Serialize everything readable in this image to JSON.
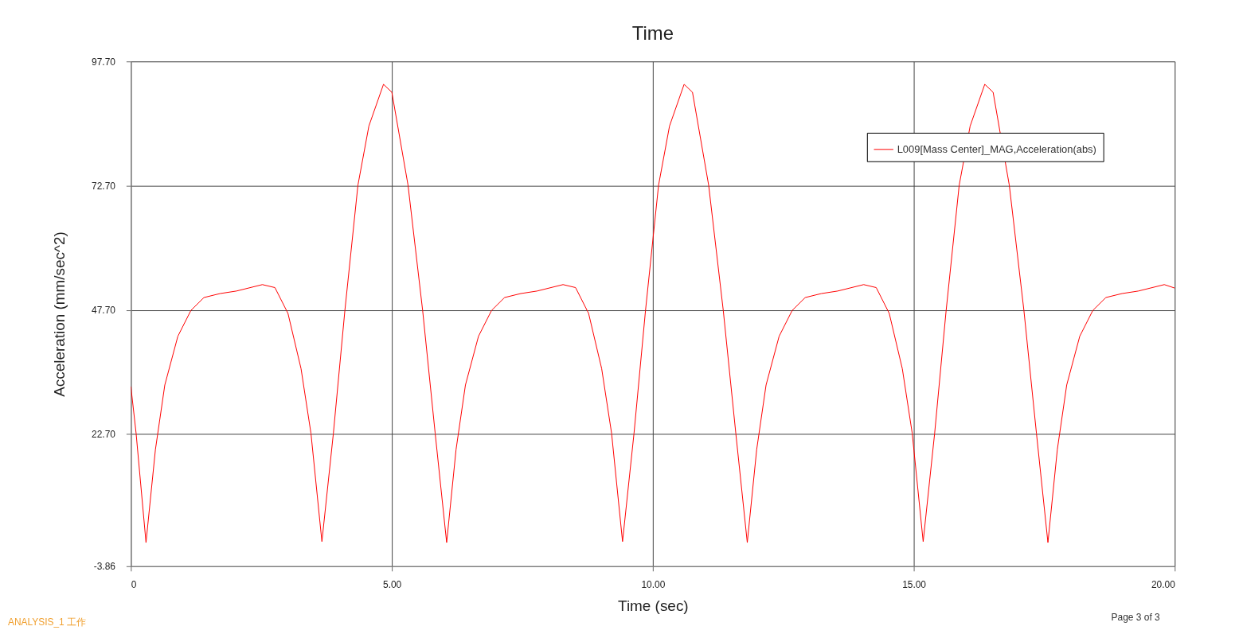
{
  "chart_data": {
    "type": "line",
    "title": "Time",
    "xlabel": "Time (sec)",
    "ylabel": "Acceleration (mm/sec^2)",
    "annotations": [
      "ANALYSIS_1 工作",
      "Page 3 of 3"
    ],
    "xlim": [
      0,
      20
    ],
    "ylim": [
      -3.86,
      97.7
    ],
    "xticks": [
      0,
      {
        "value": 5,
        "label": "5.00"
      },
      {
        "value": 10,
        "label": "10.00"
      },
      {
        "value": 15,
        "label": "15.00"
      },
      {
        "value": 20,
        "label": "20.00"
      }
    ],
    "yticks": [
      {
        "value": -3.86,
        "label": "-3.86"
      },
      {
        "value": 22.7,
        "label": "22.70"
      },
      {
        "value": 47.7,
        "label": "47.70"
      },
      {
        "value": 72.7,
        "label": "72.70"
      },
      {
        "value": 97.7,
        "label": "97.70"
      }
    ],
    "grid": true,
    "legend": "top right",
    "line_style": "solid",
    "marker": "none",
    "series": [
      {
        "name": "L009[Mass Center]_MAG,Acceleration(abs)",
        "color": "#ff0000",
        "x": [
          0,
          0.1,
          0.29,
          0.47,
          0.65,
          0.9,
          1.15,
          1.4,
          1.71,
          2.02,
          2.52,
          2.76,
          3.01,
          3.26,
          3.45,
          3.66,
          3.88,
          4.1,
          4.35,
          4.56,
          4.84,
          5.0,
          5.31,
          5.59,
          5.83,
          6.05,
          6.23,
          6.41,
          6.66,
          6.91,
          7.16,
          7.47,
          7.78,
          8.28,
          8.52,
          8.77,
          9.02,
          9.21,
          9.42,
          9.64,
          9.86,
          10.11,
          10.32,
          10.6,
          10.76,
          11.07,
          11.35,
          11.59,
          11.81,
          11.99,
          12.17,
          12.42,
          12.67,
          12.92,
          13.23,
          13.54,
          14.04,
          14.28,
          14.53,
          14.78,
          14.97,
          15.18,
          15.4,
          15.62,
          15.87,
          16.08,
          16.36,
          16.52,
          16.83,
          17.11,
          17.35,
          17.57,
          17.75,
          17.93,
          18.18,
          18.43,
          18.68,
          18.99,
          19.3,
          19.8,
          20.0
        ],
        "values": [
          32.3,
          22.9,
          0.9,
          19.6,
          32.6,
          42.4,
          47.6,
          50.2,
          51.0,
          51.5,
          52.8,
          52.2,
          47.0,
          35.9,
          22.9,
          1.1,
          22.9,
          47.6,
          72.8,
          84.7,
          93.1,
          91.5,
          72.8,
          47.6,
          22.9,
          0.9,
          19.6,
          32.6,
          42.4,
          47.6,
          50.2,
          51.0,
          51.5,
          52.8,
          52.2,
          47.0,
          35.9,
          22.9,
          1.1,
          22.9,
          47.6,
          72.8,
          84.7,
          93.1,
          91.5,
          72.8,
          47.6,
          22.9,
          0.9,
          19.6,
          32.6,
          42.4,
          47.6,
          50.2,
          51.0,
          51.5,
          52.8,
          52.2,
          47.0,
          35.9,
          22.9,
          1.1,
          22.9,
          47.6,
          72.8,
          84.7,
          93.1,
          91.5,
          72.8,
          47.6,
          22.9,
          0.9,
          19.6,
          32.6,
          42.4,
          47.6,
          50.2,
          51.0,
          51.5,
          52.8,
          52.1
        ]
      }
    ]
  }
}
